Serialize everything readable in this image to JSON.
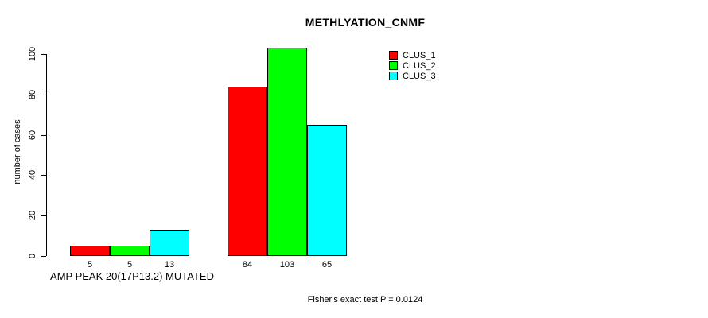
{
  "chart_data": {
    "type": "bar",
    "title": "METHLYATION_CNMF",
    "ylabel": "number of cases",
    "xlabel": "",
    "ylim": [
      0,
      100
    ],
    "yticks": [
      0,
      20,
      40,
      60,
      80,
      100
    ],
    "grid": false,
    "legend_position": "top-right",
    "series": [
      {
        "name": "CLUS_1",
        "color": "#FF0000"
      },
      {
        "name": "CLUS_2",
        "color": "#00FF00"
      },
      {
        "name": "CLUS_3",
        "color": "#00FFFF"
      }
    ],
    "groups": [
      {
        "label": "AMP PEAK 20(17P13.2) MUTATED",
        "values": [
          5,
          5,
          13
        ]
      },
      {
        "label": "",
        "values": [
          84,
          103,
          65
        ]
      }
    ],
    "bar_value_labels": [
      [
        5,
        5,
        13
      ],
      [
        84,
        103,
        65
      ]
    ],
    "annotation": "Fisher's exact test P = 0.0124"
  }
}
